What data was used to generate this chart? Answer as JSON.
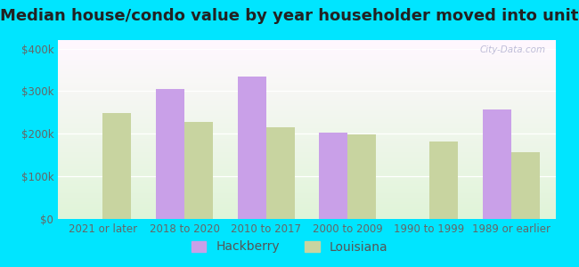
{
  "title": "Median house/condo value by year householder moved into unit",
  "categories": [
    "2021 or later",
    "2018 to 2020",
    "2010 to 2017",
    "2000 to 2009",
    "1990 to 1999",
    "1989 or earlier"
  ],
  "hackberry_values": [
    null,
    305000,
    335000,
    202000,
    null,
    258000
  ],
  "louisiana_values": [
    248000,
    228000,
    215000,
    198000,
    182000,
    157000
  ],
  "hackberry_color": "#c9a0e8",
  "louisiana_color": "#c8d4a0",
  "background_color": "#00e5ff",
  "ylabel_ticks": [
    0,
    100000,
    200000,
    300000,
    400000
  ],
  "ylim": [
    0,
    420000
  ],
  "bar_width": 0.35,
  "title_fontsize": 13,
  "tick_fontsize": 8.5,
  "legend_fontsize": 10,
  "watermark_text": "City-Data.com"
}
